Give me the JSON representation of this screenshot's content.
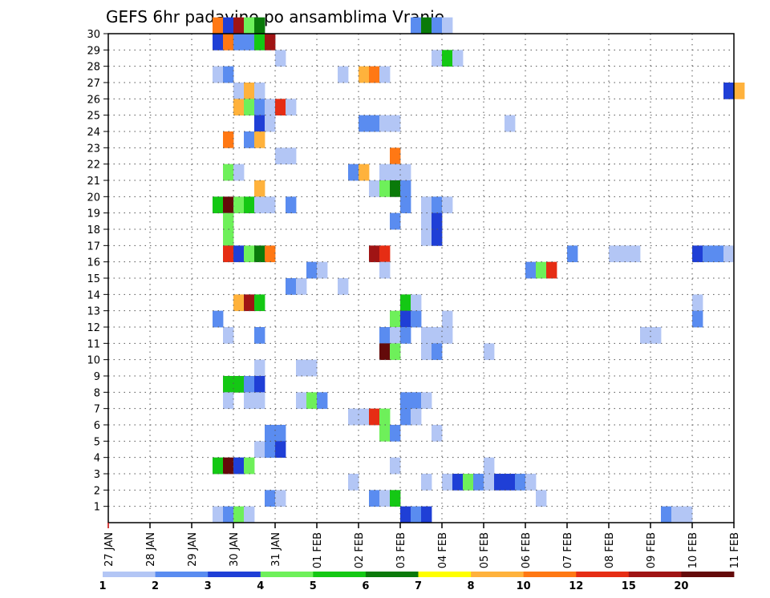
{
  "chart_data": {
    "type": "heatmap",
    "title": "GEFS 6hr padavine po ansamblima Vranje",
    "xlabel": "",
    "ylabel": "",
    "x_ticks": [
      "27 JAN",
      "28 JAN",
      "29 JAN",
      "30 JAN",
      "31 JAN",
      "01 FEB",
      "02 FEB",
      "03 FEB",
      "04 FEB",
      "05 FEB",
      "06 FEB",
      "07 FEB",
      "08 FEB",
      "09 FEB",
      "10 FEB",
      "11 FEB"
    ],
    "y_ticks": [
      "1",
      "2",
      "3",
      "4",
      "5",
      "6",
      "7",
      "8",
      "9",
      "10",
      "11",
      "12",
      "13",
      "14",
      "15",
      "16",
      "17",
      "18",
      "19",
      "20",
      "21",
      "22",
      "23",
      "24",
      "25",
      "26",
      "27",
      "28",
      "29",
      "30"
    ],
    "x_range_steps": [
      0,
      60
    ],
    "y_range": [
      0,
      30
    ],
    "grid": "dotted",
    "legend": {
      "placement": "bottom",
      "labels": [
        "1",
        "2",
        "3",
        "4",
        "5",
        "6",
        "7",
        "8",
        "10",
        "12",
        "15",
        "20"
      ],
      "colors": [
        "#b3c6f5",
        "#5a8cf0",
        "#1f3fd6",
        "#6ef05a",
        "#14c814",
        "#0a7a0a",
        "#ffff00",
        "#ffb23c",
        "#ff7814",
        "#e62d14",
        "#a01414",
        "#640a0a"
      ]
    },
    "cells": [
      {
        "member": 30,
        "step": 10,
        "value": 10
      },
      {
        "member": 30,
        "step": 11,
        "value": 3
      },
      {
        "member": 30,
        "step": 12,
        "value": 15
      },
      {
        "member": 30,
        "step": 13,
        "value": 4
      },
      {
        "member": 30,
        "step": 14,
        "value": 6
      },
      {
        "member": 30,
        "step": 29,
        "value": 2
      },
      {
        "member": 30,
        "step": 30,
        "value": 6
      },
      {
        "member": 30,
        "step": 31,
        "value": 2
      },
      {
        "member": 30,
        "step": 32,
        "value": 1
      },
      {
        "member": 29,
        "step": 10,
        "value": 3
      },
      {
        "member": 29,
        "step": 11,
        "value": 10
      },
      {
        "member": 29,
        "step": 12,
        "value": 2
      },
      {
        "member": 29,
        "step": 13,
        "value": 2
      },
      {
        "member": 29,
        "step": 14,
        "value": 5
      },
      {
        "member": 29,
        "step": 15,
        "value": 15
      },
      {
        "member": 28,
        "step": 16,
        "value": 1
      },
      {
        "member": 28,
        "step": 31,
        "value": 1
      },
      {
        "member": 28,
        "step": 32,
        "value": 5
      },
      {
        "member": 28,
        "step": 33,
        "value": 1
      },
      {
        "member": 27,
        "step": 10,
        "value": 1
      },
      {
        "member": 27,
        "step": 11,
        "value": 2
      },
      {
        "member": 27,
        "step": 22,
        "value": 1
      },
      {
        "member": 27,
        "step": 24,
        "value": 8
      },
      {
        "member": 27,
        "step": 25,
        "value": 10
      },
      {
        "member": 27,
        "step": 26,
        "value": 1
      },
      {
        "member": 26,
        "step": 12,
        "value": 1
      },
      {
        "member": 26,
        "step": 13,
        "value": 8
      },
      {
        "member": 26,
        "step": 14,
        "value": 1
      },
      {
        "member": 26,
        "step": 59,
        "value": 3
      },
      {
        "member": 26,
        "step": 60,
        "value": 8
      },
      {
        "member": 25,
        "step": 12,
        "value": 8
      },
      {
        "member": 25,
        "step": 13,
        "value": 4
      },
      {
        "member": 25,
        "step": 14,
        "value": 2
      },
      {
        "member": 25,
        "step": 15,
        "value": 1
      },
      {
        "member": 25,
        "step": 16,
        "value": 12
      },
      {
        "member": 25,
        "step": 17,
        "value": 1
      },
      {
        "member": 24,
        "step": 14,
        "value": 3
      },
      {
        "member": 24,
        "step": 15,
        "value": 1
      },
      {
        "member": 24,
        "step": 24,
        "value": 2
      },
      {
        "member": 24,
        "step": 25,
        "value": 2
      },
      {
        "member": 24,
        "step": 26,
        "value": 1
      },
      {
        "member": 24,
        "step": 27,
        "value": 1
      },
      {
        "member": 24,
        "step": 38,
        "value": 1
      },
      {
        "member": 23,
        "step": 11,
        "value": 10
      },
      {
        "member": 23,
        "step": 13,
        "value": 2
      },
      {
        "member": 23,
        "step": 14,
        "value": 8
      },
      {
        "member": 22,
        "step": 16,
        "value": 1
      },
      {
        "member": 22,
        "step": 17,
        "value": 1
      },
      {
        "member": 22,
        "step": 27,
        "value": 10
      },
      {
        "member": 21,
        "step": 11,
        "value": 4
      },
      {
        "member": 21,
        "step": 12,
        "value": 1
      },
      {
        "member": 21,
        "step": 23,
        "value": 2
      },
      {
        "member": 21,
        "step": 24,
        "value": 8
      },
      {
        "member": 21,
        "step": 26,
        "value": 1
      },
      {
        "member": 21,
        "step": 27,
        "value": 1
      },
      {
        "member": 21,
        "step": 28,
        "value": 1
      },
      {
        "member": 20,
        "step": 14,
        "value": 8
      },
      {
        "member": 20,
        "step": 25,
        "value": 1
      },
      {
        "member": 20,
        "step": 26,
        "value": 4
      },
      {
        "member": 20,
        "step": 27,
        "value": 6
      },
      {
        "member": 20,
        "step": 28,
        "value": 2
      },
      {
        "member": 19,
        "step": 10,
        "value": 5
      },
      {
        "member": 19,
        "step": 11,
        "value": 20
      },
      {
        "member": 19,
        "step": 12,
        "value": 4
      },
      {
        "member": 19,
        "step": 13,
        "value": 5
      },
      {
        "member": 19,
        "step": 14,
        "value": 1
      },
      {
        "member": 19,
        "step": 15,
        "value": 1
      },
      {
        "member": 19,
        "step": 17,
        "value": 2
      },
      {
        "member": 19,
        "step": 28,
        "value": 2
      },
      {
        "member": 19,
        "step": 30,
        "value": 1
      },
      {
        "member": 19,
        "step": 31,
        "value": 2
      },
      {
        "member": 19,
        "step": 32,
        "value": 1
      },
      {
        "member": 18,
        "step": 11,
        "value": 4
      },
      {
        "member": 18,
        "step": 27,
        "value": 2
      },
      {
        "member": 18,
        "step": 30,
        "value": 1
      },
      {
        "member": 18,
        "step": 31,
        "value": 3
      },
      {
        "member": 17,
        "step": 11,
        "value": 4
      },
      {
        "member": 17,
        "step": 30,
        "value": 1
      },
      {
        "member": 17,
        "step": 31,
        "value": 3
      },
      {
        "member": 16,
        "step": 11,
        "value": 12
      },
      {
        "member": 16,
        "step": 12,
        "value": 3
      },
      {
        "member": 16,
        "step": 13,
        "value": 4
      },
      {
        "member": 16,
        "step": 14,
        "value": 6
      },
      {
        "member": 16,
        "step": 15,
        "value": 10
      },
      {
        "member": 16,
        "step": 25,
        "value": 15
      },
      {
        "member": 16,
        "step": 26,
        "value": 12
      },
      {
        "member": 16,
        "step": 44,
        "value": 2
      },
      {
        "member": 16,
        "step": 48,
        "value": 1
      },
      {
        "member": 16,
        "step": 49,
        "value": 1
      },
      {
        "member": 16,
        "step": 50,
        "value": 1
      },
      {
        "member": 16,
        "step": 56,
        "value": 3
      },
      {
        "member": 16,
        "step": 57,
        "value": 2
      },
      {
        "member": 16,
        "step": 58,
        "value": 2
      },
      {
        "member": 16,
        "step": 59,
        "value": 1
      },
      {
        "member": 15,
        "step": 19,
        "value": 2
      },
      {
        "member": 15,
        "step": 20,
        "value": 1
      },
      {
        "member": 15,
        "step": 26,
        "value": 1
      },
      {
        "member": 15,
        "step": 40,
        "value": 2
      },
      {
        "member": 15,
        "step": 41,
        "value": 4
      },
      {
        "member": 15,
        "step": 42,
        "value": 12
      },
      {
        "member": 14,
        "step": 17,
        "value": 2
      },
      {
        "member": 14,
        "step": 18,
        "value": 1
      },
      {
        "member": 14,
        "step": 22,
        "value": 1
      },
      {
        "member": 13,
        "step": 12,
        "value": 8
      },
      {
        "member": 13,
        "step": 13,
        "value": 15
      },
      {
        "member": 13,
        "step": 14,
        "value": 5
      },
      {
        "member": 13,
        "step": 28,
        "value": 5
      },
      {
        "member": 13,
        "step": 29,
        "value": 1
      },
      {
        "member": 13,
        "step": 56,
        "value": 1
      },
      {
        "member": 12,
        "step": 10,
        "value": 2
      },
      {
        "member": 12,
        "step": 27,
        "value": 4
      },
      {
        "member": 12,
        "step": 28,
        "value": 3
      },
      {
        "member": 12,
        "step": 29,
        "value": 2
      },
      {
        "member": 12,
        "step": 32,
        "value": 1
      },
      {
        "member": 12,
        "step": 56,
        "value": 2
      },
      {
        "member": 11,
        "step": 11,
        "value": 1
      },
      {
        "member": 11,
        "step": 14,
        "value": 2
      },
      {
        "member": 11,
        "step": 26,
        "value": 2
      },
      {
        "member": 11,
        "step": 27,
        "value": 1
      },
      {
        "member": 11,
        "step": 28,
        "value": 2
      },
      {
        "member": 11,
        "step": 30,
        "value": 1
      },
      {
        "member": 11,
        "step": 31,
        "value": 1
      },
      {
        "member": 11,
        "step": 32,
        "value": 1
      },
      {
        "member": 11,
        "step": 51,
        "value": 1
      },
      {
        "member": 11,
        "step": 52,
        "value": 1
      },
      {
        "member": 10,
        "step": 26,
        "value": 20
      },
      {
        "member": 10,
        "step": 27,
        "value": 4
      },
      {
        "member": 10,
        "step": 30,
        "value": 1
      },
      {
        "member": 10,
        "step": 31,
        "value": 2
      },
      {
        "member": 10,
        "step": 36,
        "value": 1
      },
      {
        "member": 9,
        "step": 14,
        "value": 1
      },
      {
        "member": 9,
        "step": 18,
        "value": 1
      },
      {
        "member": 9,
        "step": 19,
        "value": 1
      },
      {
        "member": 8,
        "step": 11,
        "value": 5
      },
      {
        "member": 8,
        "step": 12,
        "value": 5
      },
      {
        "member": 8,
        "step": 13,
        "value": 2
      },
      {
        "member": 8,
        "step": 14,
        "value": 3
      },
      {
        "member": 7,
        "step": 11,
        "value": 1
      },
      {
        "member": 7,
        "step": 13,
        "value": 1
      },
      {
        "member": 7,
        "step": 14,
        "value": 1
      },
      {
        "member": 7,
        "step": 18,
        "value": 1
      },
      {
        "member": 7,
        "step": 19,
        "value": 4
      },
      {
        "member": 7,
        "step": 20,
        "value": 2
      },
      {
        "member": 7,
        "step": 28,
        "value": 2
      },
      {
        "member": 7,
        "step": 29,
        "value": 2
      },
      {
        "member": 7,
        "step": 30,
        "value": 1
      },
      {
        "member": 6,
        "step": 23,
        "value": 1
      },
      {
        "member": 6,
        "step": 24,
        "value": 1
      },
      {
        "member": 6,
        "step": 25,
        "value": 12
      },
      {
        "member": 6,
        "step": 26,
        "value": 4
      },
      {
        "member": 6,
        "step": 28,
        "value": 2
      },
      {
        "member": 6,
        "step": 29,
        "value": 1
      },
      {
        "member": 5,
        "step": 15,
        "value": 2
      },
      {
        "member": 5,
        "step": 16,
        "value": 2
      },
      {
        "member": 5,
        "step": 26,
        "value": 4
      },
      {
        "member": 5,
        "step": 27,
        "value": 2
      },
      {
        "member": 5,
        "step": 31,
        "value": 1
      },
      {
        "member": 4,
        "step": 14,
        "value": 1
      },
      {
        "member": 4,
        "step": 15,
        "value": 2
      },
      {
        "member": 4,
        "step": 16,
        "value": 3
      },
      {
        "member": 3,
        "step": 10,
        "value": 5
      },
      {
        "member": 3,
        "step": 11,
        "value": 20
      },
      {
        "member": 3,
        "step": 12,
        "value": 3
      },
      {
        "member": 3,
        "step": 13,
        "value": 4
      },
      {
        "member": 3,
        "step": 27,
        "value": 1
      },
      {
        "member": 3,
        "step": 36,
        "value": 1
      },
      {
        "member": 2,
        "step": 23,
        "value": 1
      },
      {
        "member": 2,
        "step": 30,
        "value": 1
      },
      {
        "member": 2,
        "step": 32,
        "value": 1
      },
      {
        "member": 2,
        "step": 33,
        "value": 3
      },
      {
        "member": 2,
        "step": 34,
        "value": 4
      },
      {
        "member": 2,
        "step": 35,
        "value": 2
      },
      {
        "member": 2,
        "step": 36,
        "value": 1
      },
      {
        "member": 2,
        "step": 37,
        "value": 3
      },
      {
        "member": 2,
        "step": 38,
        "value": 3
      },
      {
        "member": 2,
        "step": 39,
        "value": 2
      },
      {
        "member": 2,
        "step": 40,
        "value": 1
      },
      {
        "member": 1,
        "step": 15,
        "value": 2
      },
      {
        "member": 1,
        "step": 16,
        "value": 1
      },
      {
        "member": 1,
        "step": 25,
        "value": 2
      },
      {
        "member": 1,
        "step": 26,
        "value": 1
      },
      {
        "member": 1,
        "step": 27,
        "value": 5
      },
      {
        "member": 1,
        "step": 41,
        "value": 1
      },
      {
        "member": 0,
        "step": 10,
        "value": 1
      },
      {
        "member": 0,
        "step": 11,
        "value": 2
      },
      {
        "member": 0,
        "step": 12,
        "value": 4
      },
      {
        "member": 0,
        "step": 13,
        "value": 1
      },
      {
        "member": 0,
        "step": 28,
        "value": 3
      },
      {
        "member": 0,
        "step": 29,
        "value": 2
      },
      {
        "member": 0,
        "step": 30,
        "value": 3
      },
      {
        "member": 0,
        "step": 53,
        "value": 2
      },
      {
        "member": 0,
        "step": 54,
        "value": 1
      },
      {
        "member": 0,
        "step": 55,
        "value": 1
      }
    ]
  }
}
